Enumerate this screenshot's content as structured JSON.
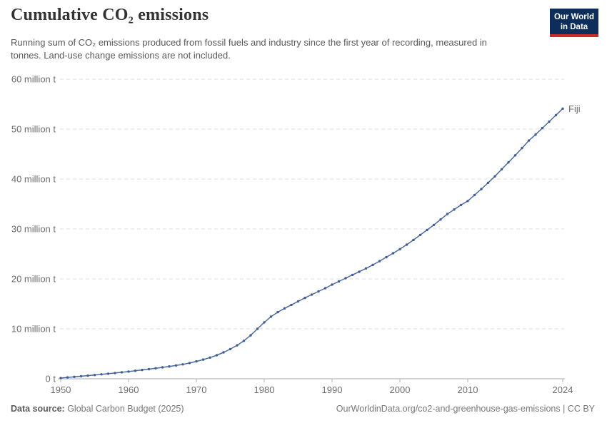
{
  "header": {
    "title": "Cumulative CO₂ emissions",
    "subtitle": "Running sum of CO₂ emissions produced from fossil fuels and industry since the first year of recording, measured in tonnes. Land-use change emissions are not included.",
    "logo": {
      "line1": "Our World",
      "line2": "in Data",
      "bg_color": "#0d2d5a",
      "accent_color": "#cb2d2d"
    }
  },
  "chart_data": {
    "type": "line",
    "title": "Cumulative CO₂ emissions",
    "xlabel": "",
    "ylabel": "",
    "unit": "tonnes",
    "xlim": [
      1950,
      2024
    ],
    "ylim": [
      0,
      60000000
    ],
    "grid": "horizontal-dashed",
    "legend_position": "end-of-line-label",
    "yticks": [
      {
        "value": 0,
        "label": "0 t"
      },
      {
        "value": 10,
        "label": "10 million t"
      },
      {
        "value": 20,
        "label": "20 million t"
      },
      {
        "value": 30,
        "label": "30 million t"
      },
      {
        "value": 40,
        "label": "40 million t"
      },
      {
        "value": 50,
        "label": "50 million t"
      },
      {
        "value": 60,
        "label": "60 million t"
      }
    ],
    "xticks": [
      1950,
      1960,
      1970,
      1980,
      1990,
      2000,
      2010,
      2024
    ],
    "series": [
      {
        "name": "Fiji",
        "color": "#4C6AA2",
        "marker_color": "#3F5D99",
        "unit_scale": "million tonnes",
        "x": [
          1950,
          1951,
          1952,
          1953,
          1954,
          1955,
          1956,
          1957,
          1958,
          1959,
          1960,
          1961,
          1962,
          1963,
          1964,
          1965,
          1966,
          1967,
          1968,
          1969,
          1970,
          1971,
          1972,
          1973,
          1974,
          1975,
          1976,
          1977,
          1978,
          1979,
          1980,
          1981,
          1982,
          1983,
          1984,
          1985,
          1986,
          1987,
          1988,
          1989,
          1990,
          1991,
          1992,
          1993,
          1994,
          1995,
          1996,
          1997,
          1998,
          1999,
          2000,
          2001,
          2002,
          2003,
          2004,
          2005,
          2006,
          2007,
          2008,
          2009,
          2010,
          2011,
          2012,
          2013,
          2014,
          2015,
          2016,
          2017,
          2018,
          2019,
          2020,
          2021,
          2022,
          2023,
          2024
        ],
        "values": [
          0.15,
          0.27,
          0.39,
          0.51,
          0.63,
          0.76,
          0.89,
          1.02,
          1.16,
          1.3,
          1.45,
          1.61,
          1.77,
          1.93,
          2.1,
          2.28,
          2.47,
          2.67,
          2.89,
          3.16,
          3.48,
          3.85,
          4.25,
          4.72,
          5.28,
          5.95,
          6.7,
          7.6,
          8.7,
          10.0,
          11.3,
          12.45,
          13.35,
          14.1,
          14.8,
          15.5,
          16.2,
          16.85,
          17.5,
          18.15,
          18.85,
          19.5,
          20.15,
          20.8,
          21.45,
          22.1,
          22.8,
          23.55,
          24.35,
          25.15,
          25.95,
          26.85,
          27.8,
          28.8,
          29.8,
          30.8,
          31.9,
          33.0,
          33.9,
          34.8,
          35.6,
          36.8,
          38.0,
          39.25,
          40.55,
          41.95,
          43.35,
          44.75,
          46.2,
          47.7,
          48.9,
          50.2,
          51.5,
          52.8,
          54.1
        ]
      }
    ]
  },
  "colors": {
    "grid": "#dddddd",
    "axis": "#a9a9a9",
    "tick": "#b3b3b3",
    "tick_text": "#6e6e6e"
  },
  "footer": {
    "source_label": "Data source:",
    "source_value": " Global Carbon Budget (2025)",
    "attribution": "OurWorldinData.org/co2-and-greenhouse-gas-emissions | CC BY"
  }
}
